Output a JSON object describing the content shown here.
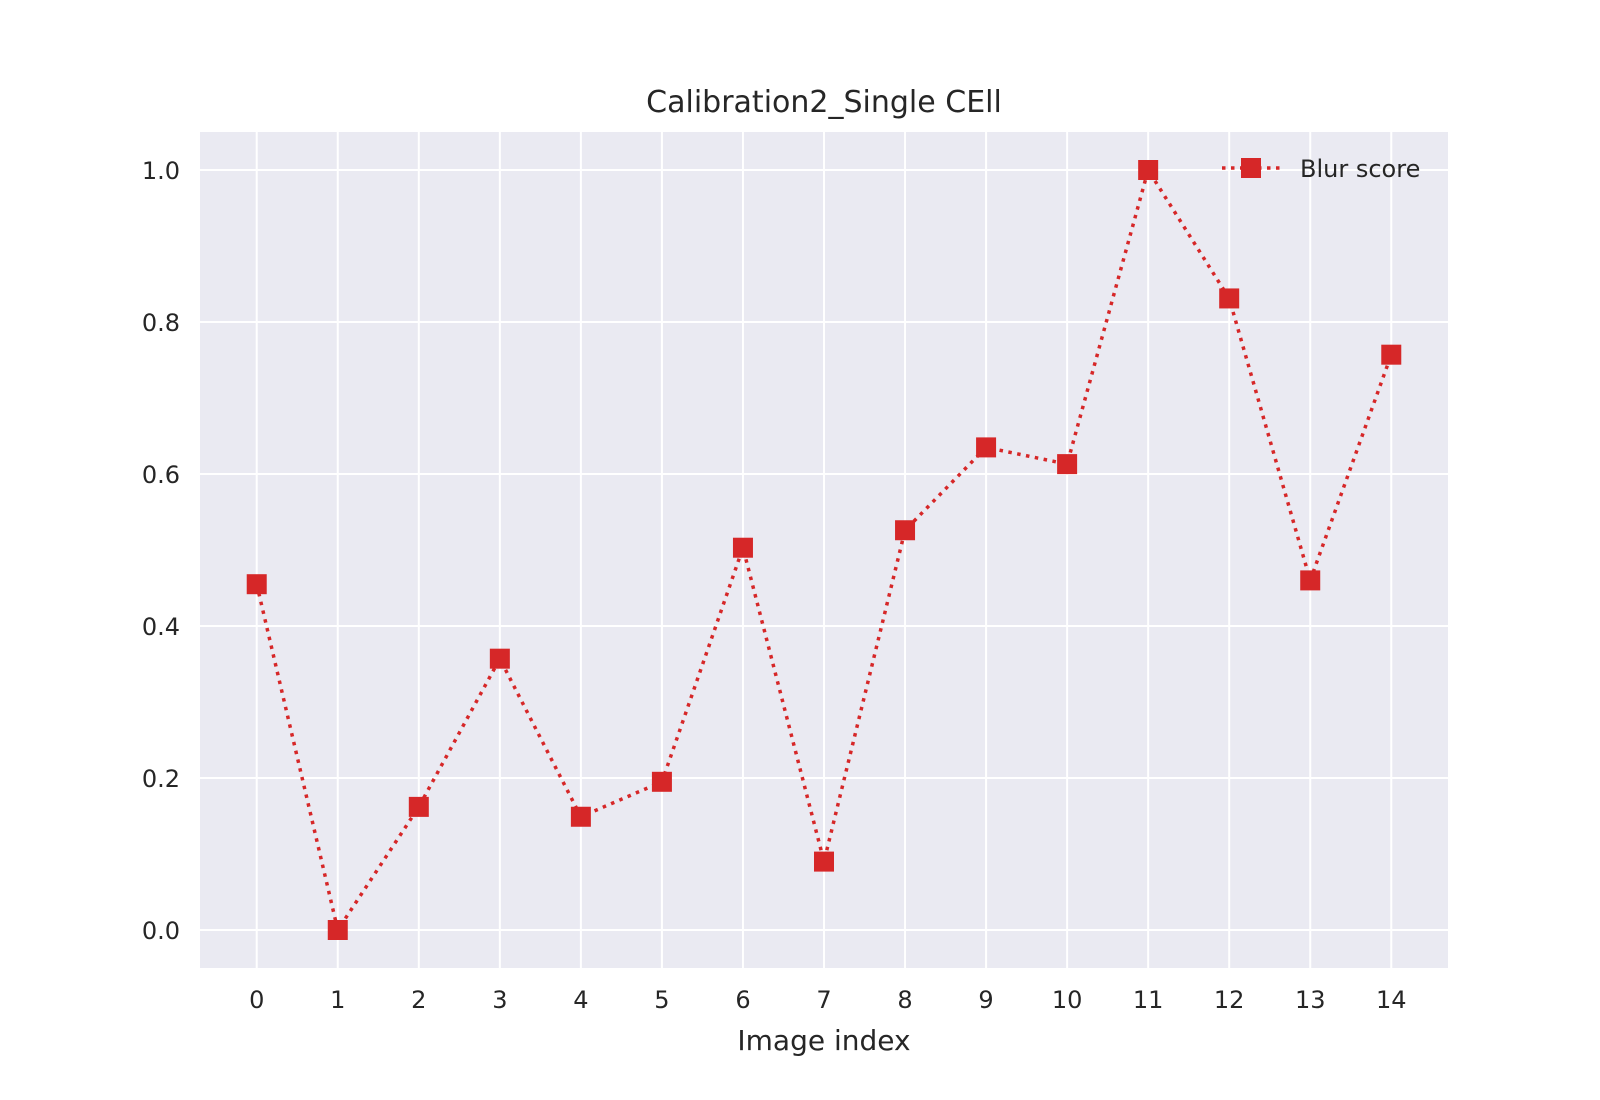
{
  "chart_data": {
    "type": "line",
    "title": "Calibration2_Single CEll",
    "xlabel": "Image index",
    "ylabel": "",
    "x": [
      0,
      1,
      2,
      3,
      4,
      5,
      6,
      7,
      8,
      9,
      10,
      11,
      12,
      13,
      14
    ],
    "series": [
      {
        "name": "Blur score",
        "color": "#d62728",
        "line_style": "dotted",
        "marker": "square",
        "values": [
          0.455,
          0.0,
          0.162,
          0.357,
          0.149,
          0.195,
          0.503,
          0.09,
          0.526,
          0.635,
          0.613,
          1.0,
          0.831,
          0.46,
          0.757
        ]
      }
    ],
    "xlim": [
      -0.7,
      14.7
    ],
    "ylim": [
      -0.05,
      1.05
    ],
    "x_ticks": [
      0,
      1,
      2,
      3,
      4,
      5,
      6,
      7,
      8,
      9,
      10,
      11,
      12,
      13,
      14
    ],
    "x_tick_labels": [
      "0",
      "1",
      "2",
      "3",
      "4",
      "5",
      "6",
      "7",
      "8",
      "9",
      "10",
      "11",
      "12",
      "13",
      "14"
    ],
    "y_ticks": [
      0.0,
      0.2,
      0.4,
      0.6,
      0.8,
      1.0
    ],
    "y_tick_labels": [
      "0.0",
      "0.2",
      "0.4",
      "0.6",
      "0.8",
      "1.0"
    ],
    "grid": true,
    "legend_position": "top-right",
    "background_color": "#eaeaf2",
    "grid_color": "#ffffff"
  }
}
